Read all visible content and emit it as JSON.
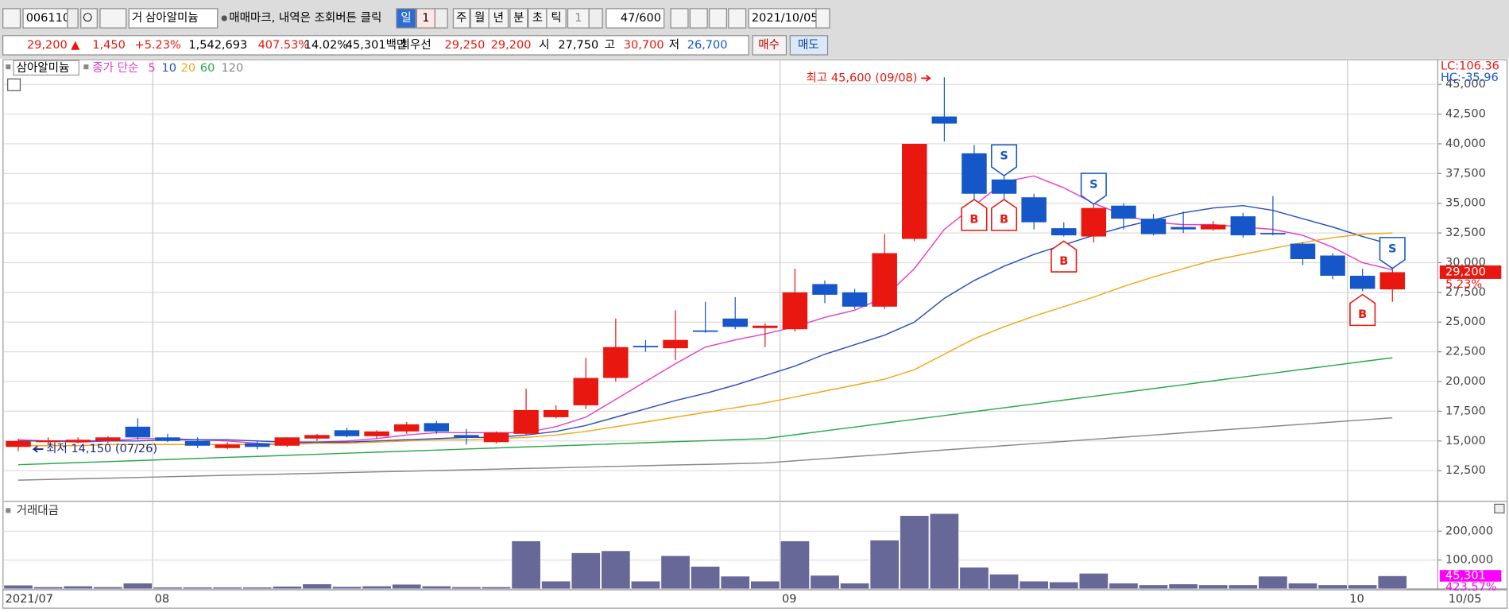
{
  "toolbar": {
    "code": "006110",
    "prefix": "거",
    "name": "삼아알미늄",
    "notice": "매매마크, 내역은 조회버튼 클릭",
    "periods": [
      "일",
      "1",
      "주",
      "월",
      "년",
      "분",
      "초",
      "틱",
      "1"
    ],
    "count": "47/600",
    "date": "2021/10/05"
  },
  "quote": {
    "price": "29,200 ▲",
    "change": "1,450",
    "rate": "+5.23%",
    "volume": "1,542,693",
    "volume_ratio": "407.53%",
    "turnover": "14.02%",
    "amount": "45,301백만",
    "best_label": "최우선",
    "ask": "29,250",
    "bid": "29,200",
    "open_label": "시",
    "open": "27,750",
    "high_label": "고",
    "high": "30,700",
    "low_label": "저",
    "low": "26,700",
    "buy": "매수",
    "sell": "매도"
  },
  "chart_data": [
    {
      "type": "candlestick",
      "title": "삼아알미늄",
      "legend_title": "종가 단순",
      "up_color": "#e8170f",
      "down_color": "#1557c9",
      "open": [
        14500,
        14900,
        14900,
        15000,
        16200,
        15300,
        15000,
        14400,
        14800,
        14600,
        15200,
        15900,
        15400,
        15800,
        16500,
        15500,
        14900,
        15600,
        17000,
        18000,
        20300,
        23000,
        22800,
        24300,
        25300,
        24500,
        24400,
        28200,
        27500,
        26300,
        32000,
        42300,
        39200,
        37000,
        35500,
        32900,
        32200,
        34800,
        33700,
        33000,
        32800,
        33900,
        32500,
        31600,
        30600,
        28900,
        27750
      ],
      "high": [
        15200,
        15300,
        15300,
        15400,
        16900,
        15600,
        15300,
        14900,
        15000,
        15300,
        15600,
        16100,
        15900,
        16600,
        16700,
        16000,
        15800,
        19400,
        18000,
        22000,
        25300,
        23500,
        26000,
        26700,
        27100,
        24900,
        29500,
        28500,
        27800,
        32400,
        40000,
        45600,
        39900,
        37500,
        35800,
        33400,
        35000,
        35000,
        34100,
        34300,
        33500,
        34200,
        35600,
        31700,
        30800,
        29500,
        30700
      ],
      "low": [
        14150,
        14700,
        14800,
        14800,
        15100,
        14900,
        14400,
        14300,
        14300,
        14500,
        15000,
        15300,
        15200,
        15600,
        15600,
        14700,
        14800,
        15500,
        16900,
        17700,
        20000,
        22500,
        21800,
        24100,
        24400,
        22900,
        24200,
        26600,
        26100,
        26100,
        31800,
        40200,
        34900,
        35300,
        32800,
        32200,
        31700,
        32800,
        32300,
        32500,
        32700,
        32100,
        32300,
        29800,
        28600,
        27600,
        26700
      ],
      "close": [
        15000,
        15050,
        15100,
        15300,
        15300,
        15000,
        14600,
        14700,
        14500,
        15300,
        15500,
        15400,
        15800,
        16400,
        15800,
        15300,
        15700,
        17600,
        17600,
        20300,
        22900,
        22900,
        23500,
        24200,
        24600,
        24700,
        27500,
        27300,
        26300,
        30800,
        40000,
        41700,
        35800,
        35800,
        33400,
        32300,
        34600,
        33700,
        32400,
        32800,
        33200,
        32300,
        32400,
        30300,
        28900,
        27800,
        29200
      ],
      "series": [
        {
          "name": "5",
          "color": "#e83ec8",
          "values": [
            15100,
            15000,
            14900,
            15000,
            15200,
            15200,
            15100,
            15000,
            14800,
            14700,
            14900,
            15000,
            15200,
            15500,
            15700,
            15700,
            15700,
            15700,
            16200,
            17000,
            18500,
            20000,
            21500,
            22900,
            23500,
            24000,
            24600,
            25400,
            26000,
            27100,
            29500,
            32800,
            34800,
            36800,
            37300,
            36300,
            35000,
            34000,
            33400,
            33200,
            33200,
            33000,
            32800,
            32300,
            31300,
            30000,
            29400
          ]
        },
        {
          "name": "10",
          "color": "#2a4fc0",
          "values": [
            15000,
            15000,
            15000,
            15000,
            15000,
            15100,
            15100,
            15100,
            15000,
            14900,
            14900,
            14900,
            15000,
            15100,
            15200,
            15300,
            15300,
            15500,
            15800,
            16300,
            17000,
            17700,
            18400,
            19000,
            19700,
            20500,
            21300,
            22300,
            23100,
            23900,
            25000,
            27000,
            28500,
            29700,
            30700,
            31500,
            32300,
            33000,
            33600,
            34200,
            34600,
            34800,
            34400,
            33700,
            33000,
            32200,
            31500
          ]
        },
        {
          "name": "20",
          "color": "#f0a818",
          "values": [
            14600,
            14600,
            14600,
            14700,
            14700,
            14700,
            14700,
            14700,
            14700,
            14700,
            14800,
            14800,
            14900,
            15000,
            15100,
            15100,
            15200,
            15300,
            15500,
            15800,
            16200,
            16600,
            17000,
            17400,
            17800,
            18200,
            18700,
            19200,
            19700,
            20200,
            21000,
            22300,
            23600,
            24600,
            25500,
            26300,
            27100,
            28000,
            28800,
            29500,
            30200,
            30700,
            31200,
            31700,
            32100,
            32400,
            32500
          ]
        },
        {
          "name": "60",
          "color": "#2aa84a",
          "values": [
            13000,
            13090,
            13180,
            13260,
            13350,
            13440,
            13530,
            13620,
            13700,
            13790,
            13880,
            13970,
            14060,
            14140,
            14230,
            14320,
            14410,
            14500,
            14580,
            14670,
            14760,
            14850,
            14940,
            15020,
            15110,
            15200,
            15520,
            15850,
            16170,
            16500,
            16820,
            17140,
            17470,
            17790,
            18110,
            18440,
            18760,
            19080,
            19410,
            19730,
            20060,
            20380,
            20700,
            21030,
            21350,
            21680,
            22000
          ]
        },
        {
          "name": "120",
          "color": "#888888",
          "values": [
            11700,
            11760,
            11820,
            11870,
            11930,
            11990,
            12050,
            12110,
            12160,
            12220,
            12280,
            12340,
            12400,
            12450,
            12510,
            12570,
            12630,
            12690,
            12740,
            12800,
            12860,
            12920,
            12980,
            13030,
            13090,
            13150,
            13330,
            13510,
            13690,
            13870,
            14050,
            14240,
            14420,
            14600,
            14780,
            14960,
            15140,
            15320,
            15500,
            15680,
            15870,
            16050,
            16230,
            16410,
            16590,
            16770,
            16950
          ]
        }
      ],
      "buy_marks": [
        null,
        null,
        null,
        null,
        null,
        null,
        null,
        null,
        null,
        null,
        null,
        null,
        null,
        null,
        null,
        null,
        null,
        null,
        null,
        null,
        null,
        null,
        null,
        null,
        null,
        null,
        null,
        null,
        null,
        null,
        null,
        null,
        "B",
        "B",
        null,
        "B",
        null,
        null,
        null,
        null,
        null,
        null,
        null,
        null,
        null,
        "B",
        null
      ],
      "sell_marks": [
        null,
        null,
        null,
        null,
        null,
        null,
        null,
        null,
        null,
        null,
        null,
        null,
        null,
        null,
        null,
        null,
        null,
        null,
        null,
        null,
        null,
        null,
        null,
        null,
        null,
        null,
        null,
        null,
        null,
        null,
        null,
        null,
        null,
        "S",
        null,
        null,
        "S",
        null,
        null,
        null,
        null,
        null,
        null,
        null,
        null,
        null,
        "S"
      ],
      "ylim": [
        10000,
        47000
      ],
      "yticks": [
        {
          "value": 12500,
          "label": "12,500"
        },
        {
          "value": 15000,
          "label": "15,000"
        },
        {
          "value": 17500,
          "label": "17,500"
        },
        {
          "value": 20000,
          "label": "20,000"
        },
        {
          "value": 22500,
          "label": "22,500"
        },
        {
          "value": 25000,
          "label": "25,000"
        },
        {
          "value": 27500,
          "label": "27,500"
        },
        {
          "value": 30000,
          "label": "30,000"
        },
        {
          "value": 32500,
          "label": "32,500"
        },
        {
          "value": 35000,
          "label": "35,000"
        },
        {
          "value": 37500,
          "label": "37,500"
        },
        {
          "value": 40000,
          "label": "40,000"
        },
        {
          "value": 42500,
          "label": "42,500"
        },
        {
          "value": 45000,
          "label": "45,000"
        }
      ],
      "grid": true,
      "high_annotation": "최고 45,600 (09/08)",
      "low_annotation": "최저 14,150 (07/26)",
      "lc_label": "LC:106.36",
      "hc_label": "HC:-35.96",
      "last_label": "29,200",
      "last_rate": "5.23%"
    },
    {
      "type": "bar",
      "title": "거래대금",
      "color": "#686898",
      "categories": [
        "2021/07",
        null,
        null,
        null,
        null,
        "08",
        null,
        null,
        null,
        null,
        null,
        null,
        null,
        null,
        null,
        null,
        null,
        null,
        null,
        null,
        null,
        null,
        null,
        null,
        null,
        null,
        "09",
        null,
        null,
        null,
        null,
        null,
        null,
        null,
        null,
        null,
        null,
        null,
        null,
        null,
        null,
        null,
        null,
        null,
        null,
        "10",
        null
      ],
      "x_end_label": "10/05",
      "values": [
        13000,
        7000,
        10000,
        7000,
        20000,
        6000,
        6000,
        6000,
        6000,
        9000,
        17000,
        8000,
        10000,
        16000,
        10000,
        7000,
        7000,
        166000,
        27000,
        125000,
        132000,
        27000,
        115000,
        78000,
        44000,
        27000,
        166000,
        47000,
        20000,
        169000,
        254000,
        261000,
        75000,
        51000,
        27000,
        24000,
        54000,
        20000,
        14000,
        17000,
        14000,
        14000,
        44000,
        20000,
        14000,
        14000,
        45301
      ],
      "value_labels": [
        null,
        null,
        null,
        null,
        null,
        null,
        null,
        null,
        null,
        null,
        null,
        null,
        null,
        null,
        null,
        null,
        null,
        null,
        null,
        null,
        null,
        null,
        null,
        null,
        null,
        null,
        null,
        null,
        null,
        null,
        null,
        null,
        null,
        null,
        null,
        null,
        null,
        null,
        null,
        null,
        null,
        null,
        null,
        null,
        null,
        null,
        "45,301"
      ],
      "rate_label": "423.57%",
      "ylim": [
        0,
        300000
      ],
      "yticks": [
        {
          "value": 100000,
          "label": "100,000"
        },
        {
          "value": 200000,
          "label": "200,000"
        }
      ]
    }
  ]
}
